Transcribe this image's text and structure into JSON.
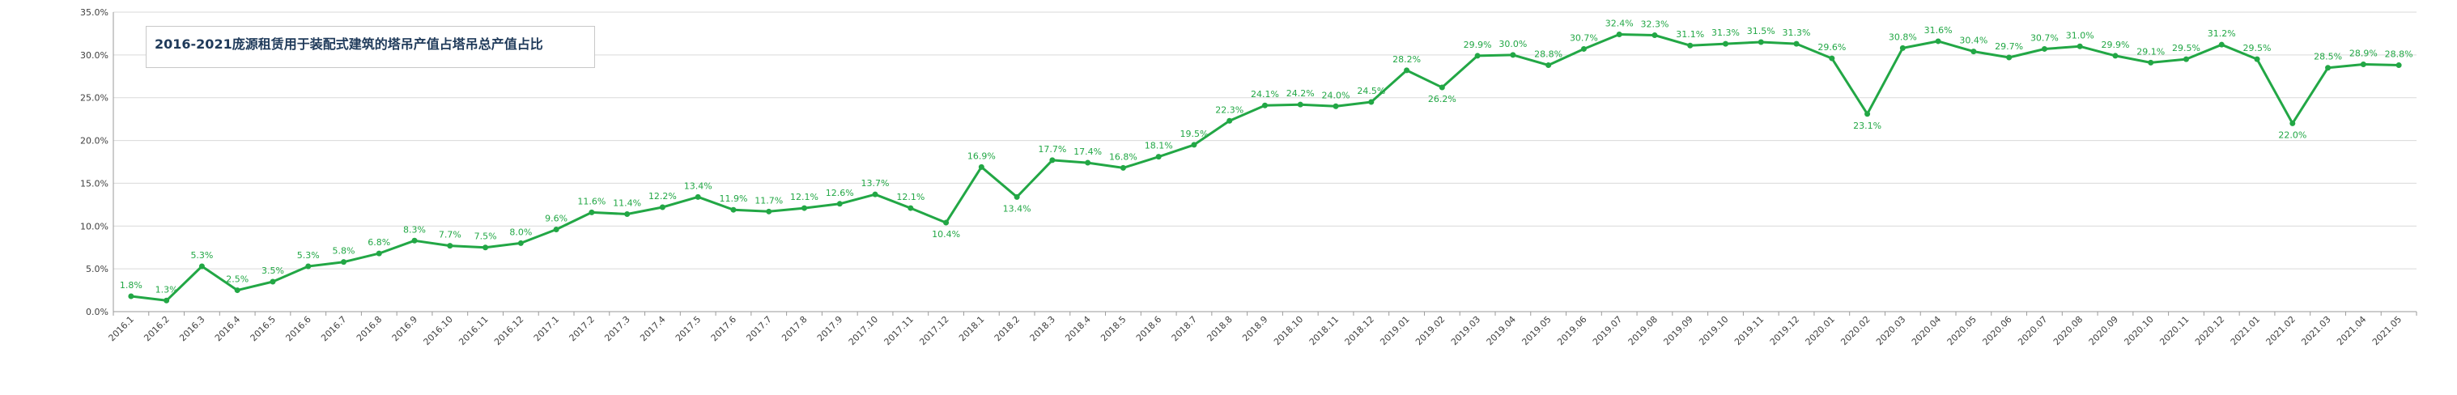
{
  "chart_data": {
    "type": "line",
    "title": "2016-2021庞源租赁用于装配式建筑的塔吊产值占塔吊总产值占比",
    "xlabel": "",
    "ylabel": "",
    "ylim": [
      0,
      35
    ],
    "yticks": [
      "0.0%",
      "5.0%",
      "10.0%",
      "15.0%",
      "20.0%",
      "25.0%",
      "30.0%",
      "35.0%"
    ],
    "grid": true,
    "legend": "none",
    "line_color": "#22a745",
    "categories": [
      "2016.1",
      "2016.2",
      "2016.3",
      "2016.4",
      "2016.5",
      "2016.6",
      "2016.7",
      "2016.8",
      "2016.9",
      "2016.10",
      "2016.11",
      "2016.12",
      "2017.1",
      "2017.2",
      "2017.3",
      "2017.4",
      "2017.5",
      "2017.6",
      "2017.7",
      "2017.8",
      "2017.9",
      "2017.10",
      "2017.11",
      "2017.12",
      "2018.1",
      "2018.2",
      "2018.3",
      "2018.4",
      "2018.5",
      "2018.6",
      "2018.7",
      "2018.8",
      "2018.9",
      "2018.10",
      "2018.11",
      "2018.12",
      "2019.01",
      "2019.02",
      "2019.03",
      "2019.04",
      "2019.05",
      "2019.06",
      "2019.07",
      "2019.08",
      "2019.09",
      "2019.10",
      "2019.11",
      "2019.12",
      "2020.01",
      "2020.02",
      "2020.03",
      "2020.04",
      "2020.05",
      "2020.06",
      "2020.07",
      "2020.08",
      "2020.09",
      "2020.10",
      "2020.11",
      "2020.12",
      "2021.01",
      "2021.02",
      "2021.03",
      "2021.04",
      "2021.05"
    ],
    "values": [
      1.8,
      1.3,
      5.3,
      2.5,
      3.5,
      5.3,
      5.8,
      6.8,
      8.3,
      7.7,
      7.5,
      8.0,
      9.6,
      11.6,
      11.4,
      12.2,
      13.4,
      11.9,
      11.7,
      12.1,
      12.6,
      13.7,
      12.1,
      10.4,
      16.9,
      13.4,
      17.7,
      17.4,
      16.8,
      18.1,
      19.5,
      22.3,
      24.1,
      24.2,
      24.0,
      24.5,
      28.2,
      26.2,
      29.9,
      30.0,
      28.8,
      30.7,
      32.4,
      32.3,
      31.1,
      31.3,
      31.5,
      31.3,
      29.6,
      23.1,
      30.8,
      31.6,
      30.4,
      29.7,
      30.7,
      31.0,
      29.9,
      29.1,
      29.5,
      31.2,
      29.5,
      22.0,
      28.5,
      28.9,
      28.8
    ],
    "data_labels": [
      "1.8%",
      "1.3%",
      "5.3%",
      "2.5%",
      "3.5%",
      "5.3%",
      "5.8%",
      "6.8%",
      "8.3%",
      "7.7%",
      "7.5%",
      "8.0%",
      "9.6%",
      "11.6%",
      "11.4%",
      "12.2%",
      "13.4%",
      "11.9%",
      "11.7%",
      "12.1%",
      "12.6%",
      "13.7%",
      "12.1%",
      "10.4%",
      "16.9%",
      "13.4%",
      "17.7%",
      "17.4%",
      "16.8%",
      "18.1%",
      "19.5%",
      "22.3%",
      "24.1%",
      "24.2%",
      "24.0%",
      "24.5%",
      "28.2%",
      "26.2%",
      "29.9%",
      "30.0%",
      "28.8%",
      "30.7%",
      "32.4%",
      "32.3%",
      "31.1%",
      "31.3%",
      "31.5%",
      "31.3%",
      "29.6%",
      "23.1%",
      "30.8%",
      "31.6%",
      "30.4%",
      "29.7%",
      "30.7%",
      "31.0%",
      "29.9%",
      "29.1%",
      "29.5%",
      "31.2%",
      "29.5%",
      "22.0%",
      "28.5%",
      "28.9%",
      "28.8%"
    ]
  }
}
